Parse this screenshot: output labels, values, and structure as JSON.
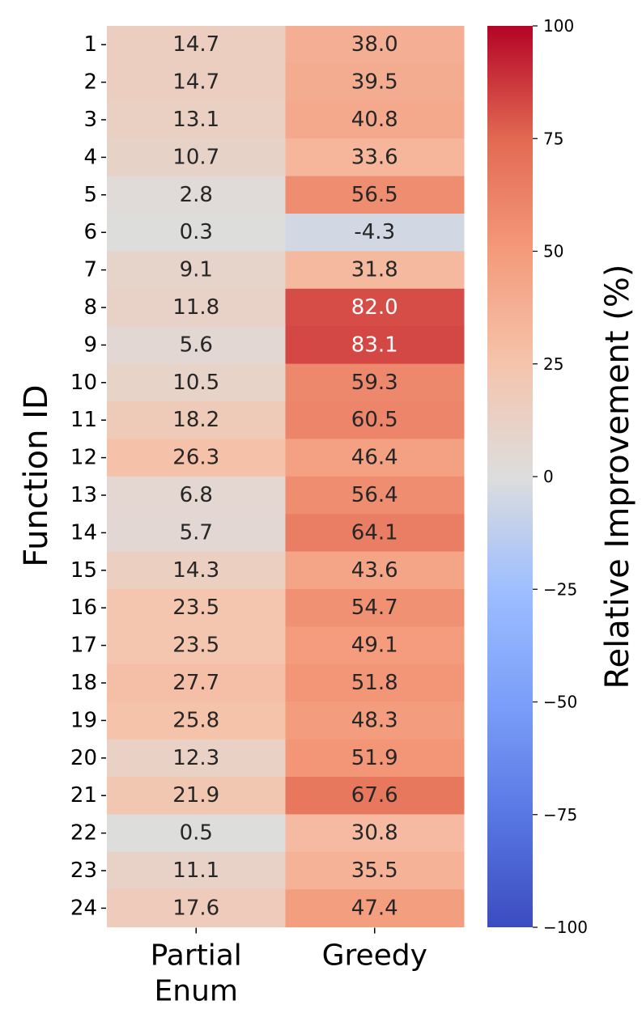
{
  "chart_data": {
    "type": "heatmap",
    "title": "",
    "columns": [
      "Partial\nEnum",
      "Greedy"
    ],
    "rows": [
      "1",
      "2",
      "3",
      "4",
      "5",
      "6",
      "7",
      "8",
      "9",
      "10",
      "11",
      "12",
      "13",
      "14",
      "15",
      "16",
      "17",
      "18",
      "19",
      "20",
      "21",
      "22",
      "23",
      "24"
    ],
    "values": [
      [
        14.7,
        38.0
      ],
      [
        14.7,
        39.5
      ],
      [
        13.1,
        40.8
      ],
      [
        10.7,
        33.6
      ],
      [
        2.8,
        56.5
      ],
      [
        0.3,
        -4.3
      ],
      [
        9.1,
        31.8
      ],
      [
        11.8,
        82.0
      ],
      [
        5.6,
        83.1
      ],
      [
        10.5,
        59.3
      ],
      [
        18.2,
        60.5
      ],
      [
        26.3,
        46.4
      ],
      [
        6.8,
        56.4
      ],
      [
        5.7,
        64.1
      ],
      [
        14.3,
        43.6
      ],
      [
        23.5,
        54.7
      ],
      [
        23.5,
        49.1
      ],
      [
        27.7,
        51.8
      ],
      [
        25.8,
        48.3
      ],
      [
        12.3,
        51.9
      ],
      [
        21.9,
        67.6
      ],
      [
        0.5,
        30.8
      ],
      [
        11.1,
        35.5
      ],
      [
        17.6,
        47.4
      ]
    ],
    "ylabel": "Function ID",
    "xlabel": "",
    "colorbar": {
      "label": "Relative Improvement (%)",
      "colormap": "coolwarm",
      "vmin": -100,
      "vmax": 100,
      "ticks": [
        100,
        75,
        50,
        25,
        0,
        -25,
        -50,
        -75,
        -100
      ],
      "tick_labels": [
        "100",
        "75",
        "50",
        "25",
        "0",
        "−25",
        "−50",
        "−75",
        "−100"
      ]
    }
  }
}
